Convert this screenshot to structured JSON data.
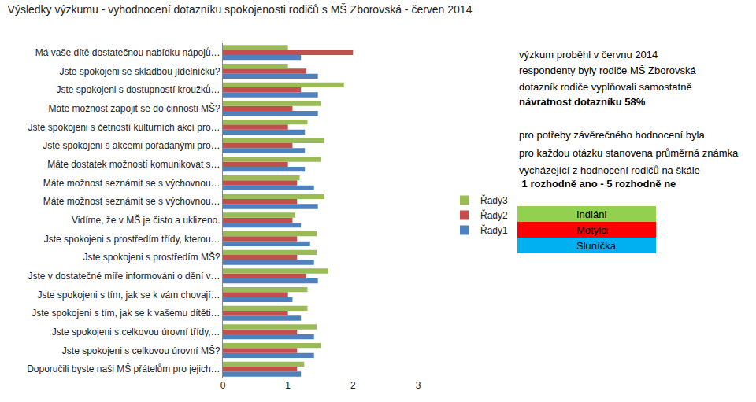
{
  "chart_data": {
    "type": "bar",
    "title": "Výsledky výzkumu - vyhodnocení dotazníku spokojenosti rodičů s MŠ Zborovská - červen 2014",
    "orientation": "horizontal",
    "grid": false,
    "legend": "right",
    "categories": [
      "Má vaše dítě dostatečnou nabídku nápojů…",
      "Jste spokojeni se skladbou jídelníčku?",
      "Jste spokojeni s dostupností kroužků…",
      "Máte možnost zapojit se do činnosti MŠ?",
      "Jste spokojeni s četností kulturních akcí pro…",
      "Jste spokojeni s akcemi pořádanými pro…",
      "Máte dostatek možností komunikovat s…",
      "Máte možnost seznámit se s výchovnou…",
      "Máte možnost seznámit se s výchovnou…",
      "Vidíme, že v MŠ je čisto a uklizeno.",
      "Jste spokojeni s prostředím třídy, kterou…",
      "Jste spokojeni s prostředím MŠ?",
      "Jste v dostatečné míře informováni o dění v…",
      "Jste spokojeni s tím, jak se k vám chovají…",
      "Jste spokojeni s tím, jak se k vašemu dítěti…",
      "Jste spokojeni s celkovou úrovní třídy,…",
      "Jste spokojeni s celkovou úrovní MŠ?",
      "Doporučili byste naši MŠ přátelům pro jejich…"
    ],
    "series": [
      {
        "name": "Řady1",
        "color": "#4f81bd",
        "values": [
          1.2,
          1.46,
          1.46,
          1.46,
          1.26,
          1.26,
          1.26,
          1.4,
          1.46,
          1.2,
          1.34,
          1.4,
          1.46,
          1.07,
          1.2,
          1.4,
          1.4,
          1.2
        ]
      },
      {
        "name": "Řady2",
        "color": "#c0504d",
        "values": [
          2.0,
          1.28,
          1.2,
          1.07,
          1.0,
          1.07,
          1.0,
          1.14,
          1.14,
          1.07,
          1.14,
          1.14,
          1.28,
          1.0,
          1.0,
          1.14,
          1.14,
          1.14
        ]
      },
      {
        "name": "Řady3",
        "color": "#9bbb59",
        "values": [
          1.0,
          1.0,
          1.86,
          1.5,
          1.3,
          1.56,
          1.5,
          1.18,
          1.56,
          1.11,
          1.44,
          1.44,
          1.62,
          1.3,
          1.3,
          1.44,
          1.5,
          1.25
        ]
      }
    ],
    "xlim": [
      0,
      3
    ],
    "xticks": [
      0,
      1,
      2,
      3
    ],
    "annotations": [
      [
        "výzkum proběhl v červnu 2014",
        "respondenty byly rodiče MŠ Zborovská",
        "dotazník rodiče vyplňovali samostatně",
        "návratnost dotazníku 58%"
      ],
      [
        "pro potřeby závěrečného hodnocení byla",
        "pro každou otázku stanovena průměrná známka",
        "vycházející z hodnocení rodičů na škále",
        " 1 rozhodně ano - 5 rozhodně ne"
      ]
    ],
    "groups": [
      {
        "name": "Indiáni",
        "color": "#92d050"
      },
      {
        "name": "Motýlci",
        "color": "#ff0000"
      },
      {
        "name": "Sluníčka",
        "color": "#00b0f0"
      }
    ]
  }
}
